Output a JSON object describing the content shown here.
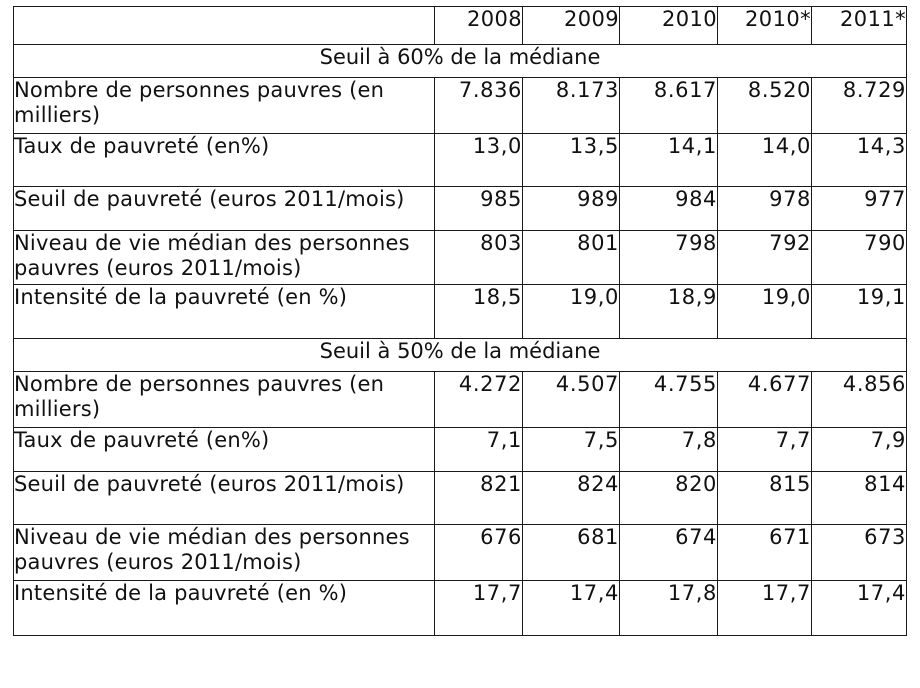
{
  "table": {
    "corner": "",
    "years": [
      "2008",
      "2009",
      "2010",
      "2010*",
      "2011*"
    ],
    "sections": [
      {
        "title": "Seuil à 60% de la médiane",
        "rows": [
          {
            "label": "Nombre de personnes pauvres (en milliers)",
            "values": [
              "7.836",
              "8.173",
              "8.617",
              "8.520",
              "8.729"
            ]
          },
          {
            "label": "Taux de pauvreté (en%)",
            "values": [
              "13,0",
              "13,5",
              "14,1",
              "14,0",
              "14,3"
            ]
          },
          {
            "label": "Seuil de pauvreté (euros 2011/mois)",
            "values": [
              "985",
              "989",
              "984",
              "978",
              "977"
            ]
          },
          {
            "label": "Niveau de vie médian des personnes pauvres (euros 2011/mois)",
            "values": [
              "803",
              "801",
              "798",
              "792",
              "790"
            ]
          },
          {
            "label": "Intensité de la pauvreté (en %)",
            "values": [
              "18,5",
              "19,0",
              "18,9",
              "19,0",
              "19,1"
            ]
          }
        ]
      },
      {
        "title": "Seuil à 50% de la médiane",
        "rows": [
          {
            "label": "Nombre de personnes pauvres (en milliers)",
            "values": [
              "4.272",
              "4.507",
              "4.755",
              "4.677",
              "4.856"
            ]
          },
          {
            "label": "Taux de pauvreté (en%)",
            "values": [
              "7,1",
              "7,5",
              "7,8",
              "7,7",
              "7,9"
            ]
          },
          {
            "label": "Seuil de pauvreté (euros 2011/mois)",
            "values": [
              "821",
              "824",
              "820",
              "815",
              "814"
            ]
          },
          {
            "label": "Niveau de vie médian des personnes pauvres (euros 2011/mois)",
            "values": [
              "676",
              "681",
              "674",
              "671",
              "673"
            ]
          },
          {
            "label": "Intensité de la pauvreté (en %)",
            "values": [
              "17,7",
              "17,4",
              "17,8",
              "17,7",
              "17,4"
            ]
          }
        ]
      }
    ]
  }
}
